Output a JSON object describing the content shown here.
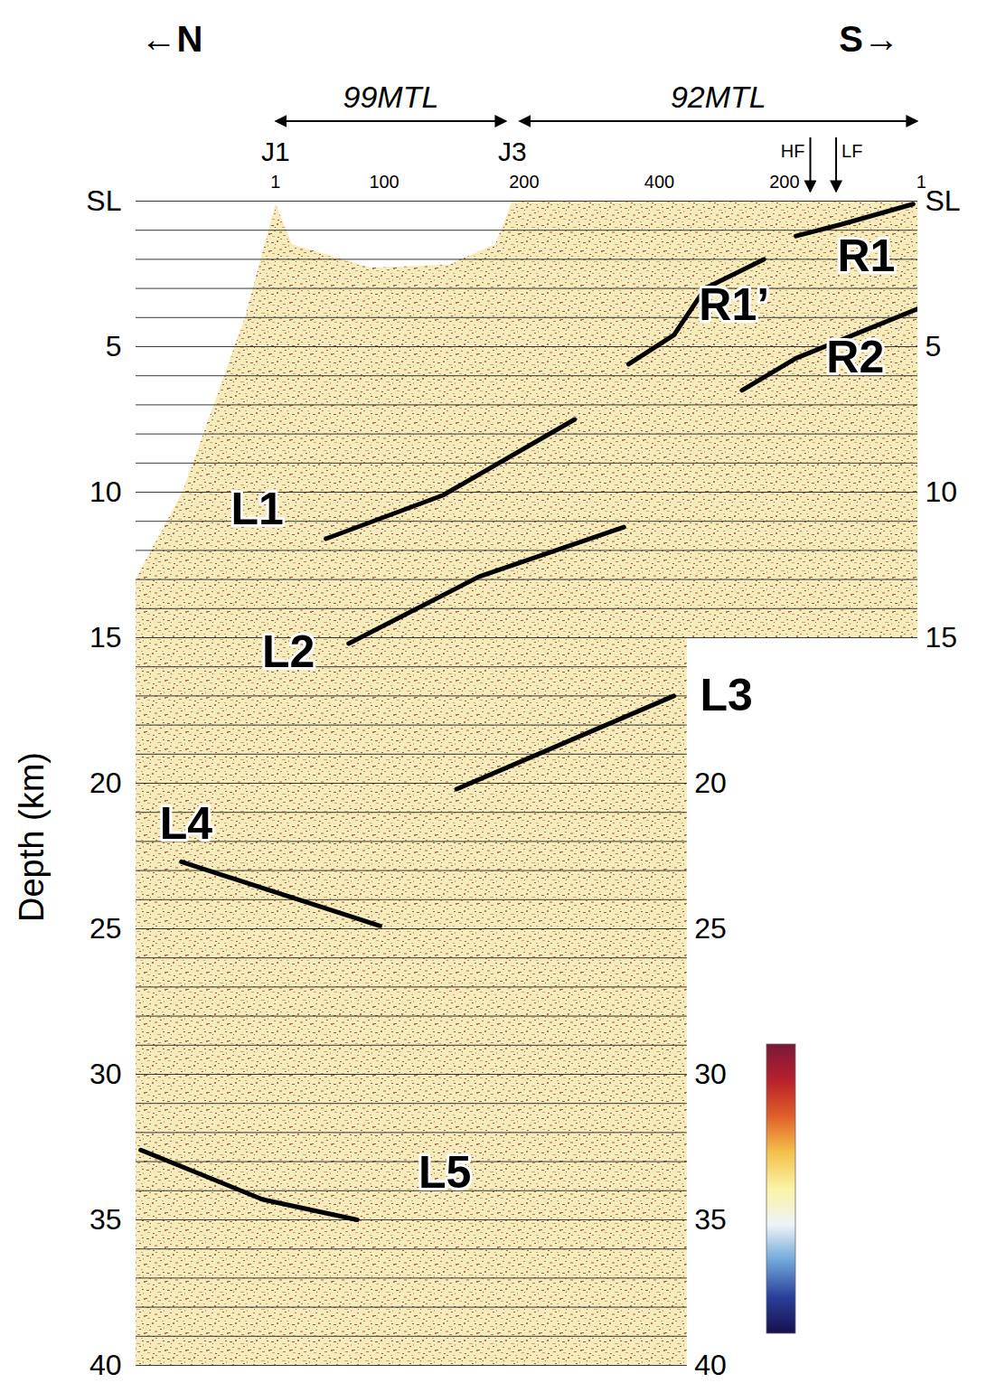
{
  "chart_data": {
    "type": "line",
    "ylabel": "Depth (km)",
    "direction_labels": [
      "←N",
      "S→"
    ],
    "xlim": [
      0,
      100
    ],
    "ylim": [
      0,
      40
    ],
    "yticks": [
      {
        "value": 0,
        "label": "SL"
      },
      5,
      10,
      15,
      20,
      25,
      30,
      35,
      40
    ],
    "right_axis": [
      {
        "x": 100,
        "ticks": [
          {
            "value": 0,
            "label": "SL"
          },
          5,
          10,
          15
        ]
      },
      {
        "x": 70.5,
        "ticks": [
          20,
          25,
          30,
          35,
          40
        ]
      }
    ],
    "tick_labels": "y",
    "grid": true,
    "gridlines": [
      0,
      1,
      2,
      3,
      4,
      5,
      6,
      7,
      8,
      9,
      10,
      11,
      12,
      13,
      14,
      15,
      16,
      17,
      18,
      19,
      20,
      21,
      22,
      23,
      24,
      25,
      26,
      27,
      28,
      29,
      30,
      31,
      32,
      33,
      34,
      35,
      36,
      37,
      38,
      39,
      40
    ],
    "profiles": [
      {
        "name": "99MTL",
        "x": [
          17.9,
          47.4
        ]
      },
      {
        "name": "92MTL",
        "x": [
          49.1,
          100
        ]
      }
    ],
    "junctions": [
      {
        "name": "J1",
        "x": 17.9
      },
      {
        "name": "J3",
        "x": 48.2
      }
    ],
    "cdp_ticks": [
      {
        "value": 17.9,
        "label": "1"
      },
      {
        "value": 31.8,
        "label": "100"
      },
      {
        "value": 49.7,
        "label": "200"
      },
      {
        "value": 67,
        "label": "400"
      },
      {
        "value": 83,
        "label": "200"
      },
      {
        "value": 100.5,
        "label": "1"
      }
    ],
    "faults": [
      {
        "name": "HF",
        "x": 86.3
      },
      {
        "name": "LF",
        "x": 89.6
      }
    ],
    "coverage": {
      "x": [
        17.9,
        20,
        30,
        40,
        46,
        48.2,
        100,
        100,
        70.5,
        70.5,
        0,
        0,
        6,
        10,
        14
      ],
      "y": [
        0.1,
        1.5,
        2.3,
        2.2,
        1.5,
        0,
        0,
        15,
        15,
        40,
        40,
        13,
        10,
        7,
        4
      ]
    },
    "series": [
      {
        "name": "L1",
        "color": "#000000",
        "x": [
          24.3,
          39.3,
          56.1
        ],
        "values": [
          11.6,
          10.1,
          7.5
        ],
        "label_x": 15.5,
        "label_y": 10.6
      },
      {
        "name": "L2",
        "color": "#000000",
        "x": [
          27.2,
          43.9,
          62.4
        ],
        "values": [
          15.2,
          12.9,
          11.2
        ],
        "label_x": 19.5,
        "label_y": 15.5
      },
      {
        "name": "L3",
        "color": "#000000",
        "x": [
          41,
          68.8
        ],
        "values": [
          20.2,
          17.0
        ],
        "label_x": 75.5,
        "label_y": 17.0
      },
      {
        "name": "L4",
        "color": "#000000",
        "x": [
          5.8,
          31.2
        ],
        "values": [
          22.7,
          24.9
        ],
        "label_x": 6.4,
        "label_y": 21.4
      },
      {
        "name": "L5",
        "color": "#000000",
        "x": [
          0.6,
          16.2,
          28.3
        ],
        "values": [
          32.6,
          34.3,
          35.0
        ],
        "label_x": 39.5,
        "label_y": 33.4
      },
      {
        "name": "R1’",
        "color": "#000000",
        "x": [
          63,
          68.8,
          72.8,
          80.3
        ],
        "values": [
          5.6,
          4.6,
          3.0,
          2.0
        ],
        "label_x": 76.5,
        "label_y": 3.6
      },
      {
        "name": "R1",
        "color": "#000000",
        "x": [
          84.4,
          90.2,
          99.4
        ],
        "values": [
          1.2,
          0.8,
          0.1
        ],
        "label_x": 93.4,
        "label_y": 1.9
      },
      {
        "name": "R2",
        "color": "#000000",
        "x": [
          77.5,
          84.4,
          100
        ],
        "values": [
          6.5,
          5.4,
          3.7
        ],
        "label_x": 92,
        "label_y": 5.4
      }
    ],
    "colorbar": {
      "colors": [
        "#16104e",
        "#2a3f9a",
        "#6fa6d8",
        "#eef3f7",
        "#fbf3a6",
        "#f4c24a",
        "#e0602a",
        "#b8202c",
        "#7a1838"
      ]
    }
  }
}
